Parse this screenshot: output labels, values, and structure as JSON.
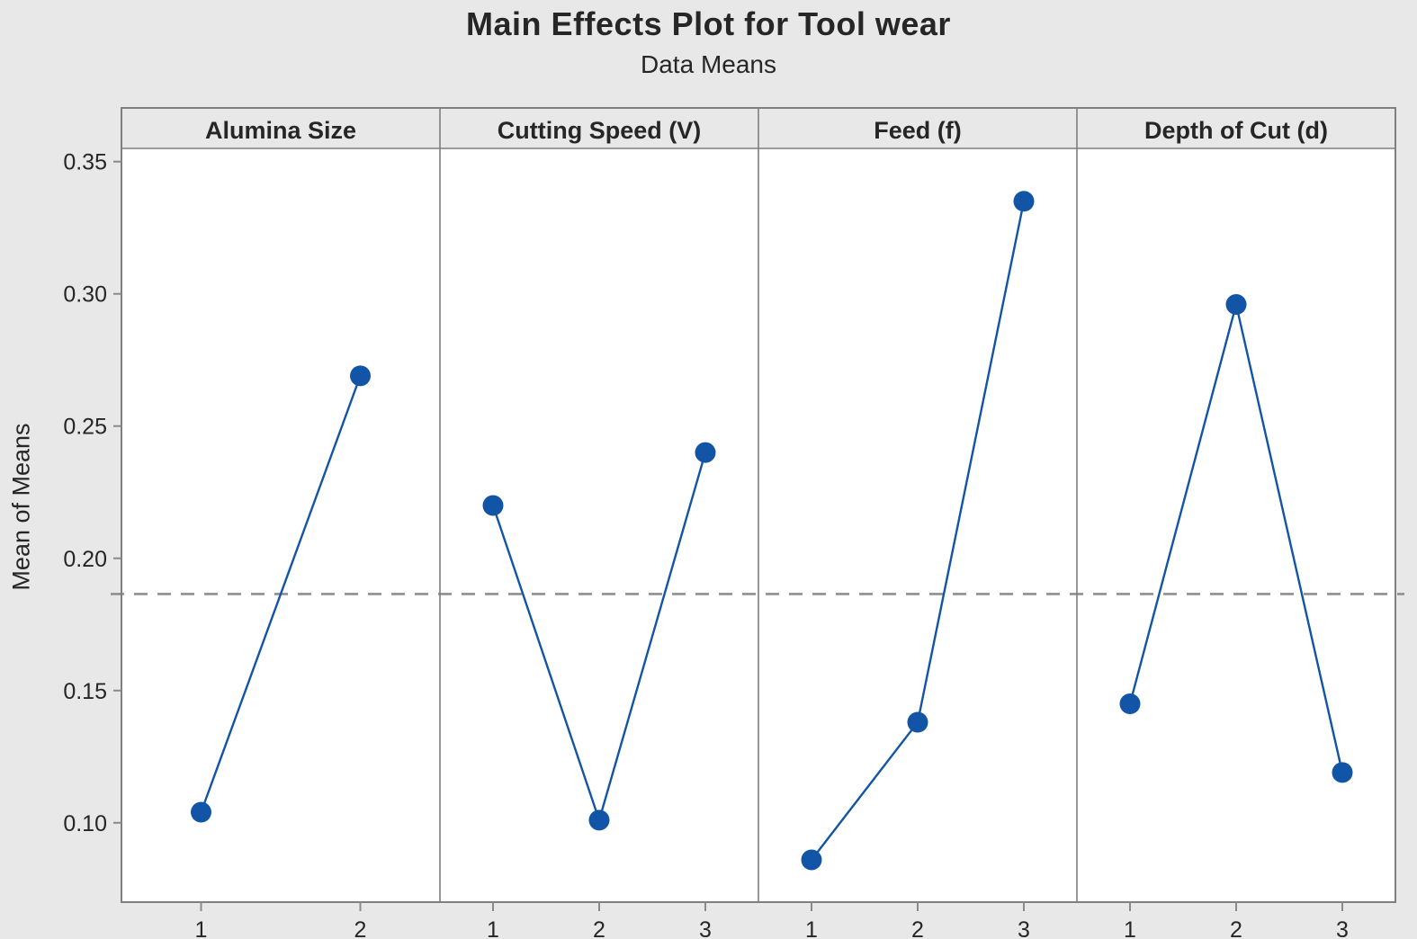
{
  "chart_data": {
    "type": "line",
    "title": "Main Effects Plot for Tool wear",
    "subtitle": "Data Means",
    "ylabel": "Mean of Means",
    "ylim": [
      0.07,
      0.355
    ],
    "yticks": [
      0.1,
      0.15,
      0.2,
      0.25,
      0.3,
      0.35
    ],
    "grid": "off",
    "legend": "none",
    "reference_line_value": 0.1865,
    "panels": [
      {
        "label": "Alumina Size",
        "categories": [
          "1",
          "2"
        ],
        "values": [
          0.104,
          0.269
        ]
      },
      {
        "label": "Cutting Speed (V)",
        "categories": [
          "1",
          "2",
          "3"
        ],
        "values": [
          0.22,
          0.101,
          0.24
        ]
      },
      {
        "label": "Feed (f)",
        "categories": [
          "1",
          "2",
          "3"
        ],
        "values": [
          0.086,
          0.138,
          0.335
        ]
      },
      {
        "label": "Depth of Cut (d)",
        "categories": [
          "1",
          "2",
          "3"
        ],
        "values": [
          0.145,
          0.296,
          0.119
        ]
      }
    ],
    "colors": {
      "series_blue": "#1254a6",
      "reference_gray": "#8f8f8f",
      "panel_border": "#7f7f7f",
      "tick_gray": "#8a8a8a",
      "background": "#e8e8e8",
      "panel_background": "#ffffff",
      "text": "#262626"
    }
  }
}
